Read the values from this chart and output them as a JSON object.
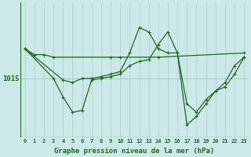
{
  "background_color": "#cce8e8",
  "grid_color": "#aacccc",
  "line_color": "#1a6b1a",
  "xlabel": "Graphe pression niveau de la mer (hPa)",
  "ylabel_text": "1015",
  "hline_y": 1015,
  "xlim": [
    -0.5,
    23.5
  ],
  "ylim": [
    1008.0,
    1024.0
  ],
  "xticks": [
    0,
    1,
    2,
    3,
    4,
    5,
    6,
    7,
    8,
    9,
    10,
    11,
    12,
    13,
    14,
    15,
    16,
    17,
    18,
    19,
    20,
    21,
    22,
    23
  ],
  "font_size_xlabel": 6.5,
  "font_size_ytick": 6.5,
  "font_size_xtick": 5.0,
  "marker_size": 3.0,
  "line_width": 0.9,
  "series1_x": [
    0,
    1,
    2,
    3,
    9,
    10,
    14,
    23
  ],
  "series1_y": [
    1018.5,
    1017.8,
    1017.8,
    1017.5,
    1017.5,
    1017.5,
    1017.5,
    1018.0
  ],
  "series2_x": [
    0,
    3,
    4,
    5,
    6,
    7,
    8,
    9,
    10,
    11,
    12,
    13,
    14,
    15,
    16,
    17,
    18,
    19,
    20,
    21,
    22,
    23
  ],
  "series2_y": [
    1018.5,
    1015.0,
    1012.8,
    1011.0,
    1011.2,
    1014.8,
    1015.0,
    1015.2,
    1015.5,
    1016.5,
    1017.0,
    1017.2,
    1019.0,
    1020.5,
    1018.0,
    1009.5,
    1010.5,
    1012.0,
    1013.5,
    1014.0,
    1015.5,
    1017.5
  ],
  "series3_x": [
    0,
    4,
    5,
    6,
    7,
    8,
    9,
    10,
    11,
    12,
    13,
    14,
    15,
    16,
    17,
    18,
    19,
    20,
    21,
    22,
    23
  ],
  "series3_y": [
    1018.5,
    1014.8,
    1014.5,
    1015.0,
    1015.0,
    1015.2,
    1015.5,
    1015.8,
    1018.0,
    1021.0,
    1020.5,
    1018.5,
    1018.0,
    1018.0,
    1012.0,
    1011.0,
    1012.5,
    1013.5,
    1014.5,
    1016.5,
    1017.5
  ]
}
